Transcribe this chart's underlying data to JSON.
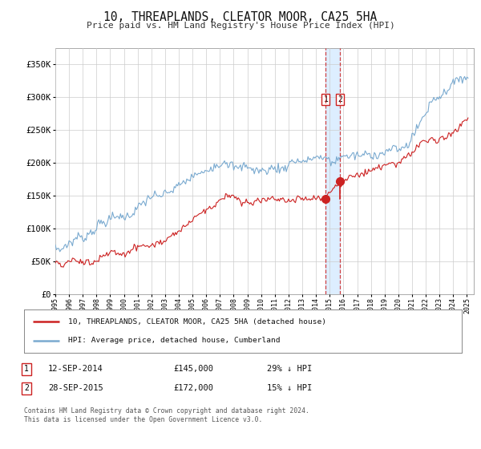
{
  "title": "10, THREAPLANDS, CLEATOR MOOR, CA25 5HA",
  "subtitle": "Price paid vs. HM Land Registry's House Price Index (HPI)",
  "legend_label1": "10, THREAPLANDS, CLEATOR MOOR, CA25 5HA (detached house)",
  "legend_label2": "HPI: Average price, detached house, Cumberland",
  "annotation1_date": "12-SEP-2014",
  "annotation1_price": "£145,000",
  "annotation1_hpi": "29% ↓ HPI",
  "annotation2_date": "28-SEP-2015",
  "annotation2_price": "£172,000",
  "annotation2_hpi": "15% ↓ HPI",
  "footnote": "Contains HM Land Registry data © Crown copyright and database right 2024.\nThis data is licensed under the Open Government Licence v3.0.",
  "sale1_year": 2014.708,
  "sale1_value": 145000,
  "sale2_year": 2015.745,
  "sale2_value": 172000,
  "hpi_color": "#7aaad0",
  "property_color": "#cc2222",
  "vline_color": "#cc2222",
  "vband_color": "#ddeeff",
  "background_color": "#ffffff",
  "grid_color": "#cccccc",
  "yticks": [
    0,
    50000,
    100000,
    150000,
    200000,
    250000,
    300000,
    350000
  ],
  "ylim": [
    0,
    375000
  ],
  "xlim_start": 1995.0,
  "xlim_end": 2025.5
}
